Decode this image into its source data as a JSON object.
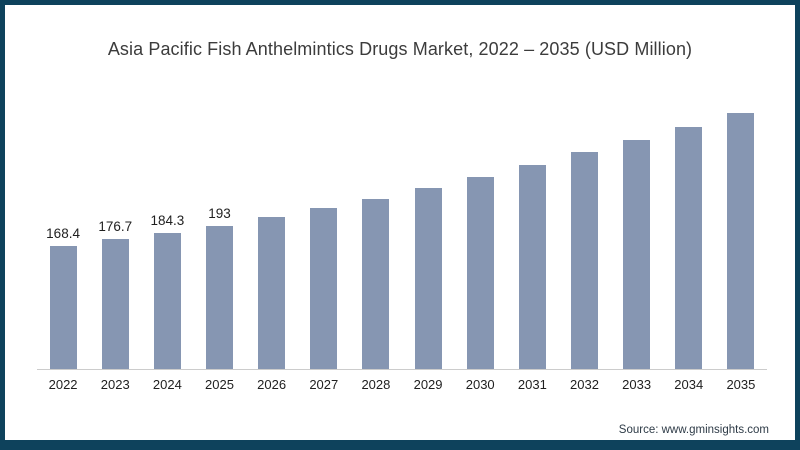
{
  "chart_data": {
    "type": "bar",
    "title": "Asia Pacific Fish Anthelmintics Drugs Market, 2022 – 2035 (USD Million)",
    "categories": [
      "2022",
      "2023",
      "2024",
      "2025",
      "2026",
      "2027",
      "2028",
      "2029",
      "2030",
      "2031",
      "2032",
      "2033",
      "2034",
      "2035"
    ],
    "values": [
      168.4,
      176.7,
      184.3,
      193,
      203,
      214,
      224.5,
      237.5,
      251,
      265,
      280,
      295,
      310,
      327
    ],
    "data_labels": [
      "168.4",
      "176.7",
      "184.3",
      "193",
      "",
      "",
      "",
      "",
      "",
      "",
      "",
      "",
      "",
      ""
    ],
    "xlabel": "",
    "ylabel": "",
    "ylim": [
      0,
      340
    ],
    "grid": false,
    "legend": null,
    "bar_color": "#8696B2"
  },
  "source": "Source: www.gminsights.com",
  "colors": {
    "frame_border": "#0E425C",
    "bar": "#8696B2",
    "axis_line": "#CCCCCC",
    "title_text": "#3C3C3C",
    "label_text": "#1F1F1F"
  }
}
